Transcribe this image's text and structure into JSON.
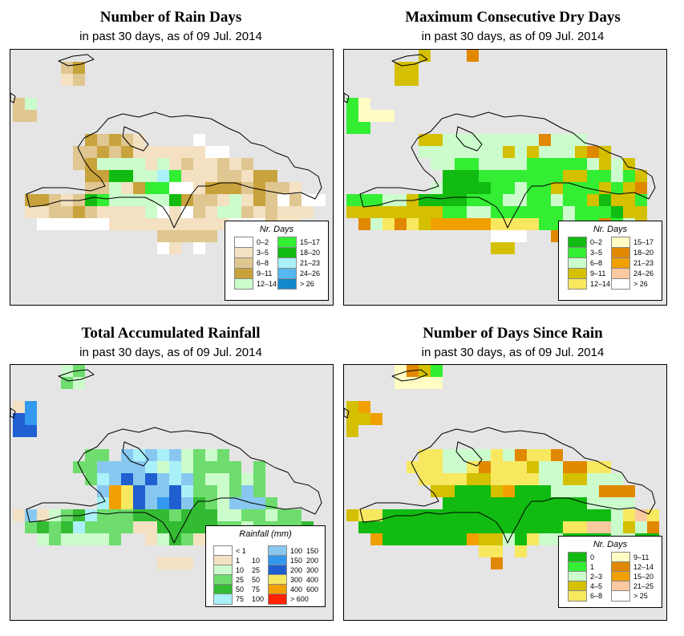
{
  "panels": [
    {
      "title": "Number of Rain Days",
      "subtitle": "in past 30 days, as of  09 Jul. 2014",
      "legend": {
        "title": "Nr. Days",
        "items": [
          {
            "label": "0–2",
            "color": "#ffffff"
          },
          {
            "label": "3–5",
            "color": "#f3e1c2"
          },
          {
            "label": "6–8",
            "color": "#e0c690"
          },
          {
            "label": "9–11",
            "color": "#c8a23c"
          },
          {
            "label": "12–14",
            "color": "#ccfccc"
          },
          {
            "label": "15–17",
            "color": "#33ee33"
          },
          {
            "label": "18–20",
            "color": "#11bb11"
          },
          {
            "label": "21–23",
            "color": "#aaf0f8"
          },
          {
            "label": "24–26",
            "color": "#55b8ee"
          },
          {
            "label": "> 26",
            "color": "#1188cc"
          }
        ]
      },
      "map": {
        "palette": {
          "a": "#ffffff",
          "b": "#f3e1c2",
          "c": "#e0c690",
          "d": "#c8a23c",
          "e": "#ccfccc",
          "f": "#33ee33",
          "g": "#11bb11",
          "h": "#aaf0f8"
        },
        "rows": [
          "...........................",
          "....cd.....................",
          "....bc.....................",
          "...........................",
          "ce.........................",
          "cc.........................",
          "...........................",
          "......dcdcb....a...........",
          ".....ccdcdbbbbbbaa.........",
          ".....cdeeeebebcbbcbc.......",
          "......ddggeehfbbbccbdd.....",
          "......ccebdffaabdddcdccb...",
          ".ddcbcgfeeeeegdccbebdcacaa.",
          ".bbccdcbbbbeabacbeecbcbbb..",
          "..aaaaaabbbbbbbbbbaaacbb...",
          "............ccccc..........",
          "............ab.a..........."
        ]
      }
    },
    {
      "title": "Maximum Consecutive Dry Days",
      "subtitle": "in past 30 days, as of  09 Jul. 2014",
      "legend": {
        "title": "Nr. Days",
        "items": [
          {
            "label": "0–2",
            "color": "#11bb11"
          },
          {
            "label": "3–5",
            "color": "#33ee33"
          },
          {
            "label": "6–8",
            "color": "#ccfccc"
          },
          {
            "label": "9–11",
            "color": "#d4c000"
          },
          {
            "label": "12–14",
            "color": "#f8e860"
          },
          {
            "label": "15–17",
            "color": "#fffcc4"
          },
          {
            "label": "18–20",
            "color": "#e08800"
          },
          {
            "label": "21–23",
            "color": "#f0a000"
          },
          {
            "label": "24–26",
            "color": "#fbc9a0"
          },
          {
            "label": "> 26",
            "color": "#ffffff"
          }
        ]
      },
      "map": {
        "palette": {
          "a": "#11bb11",
          "b": "#33ee33",
          "c": "#ccfccc",
          "d": "#d4c000",
          "e": "#f8e860",
          "f": "#fffcc4",
          "g": "#e08800",
          "h": "#f0a000",
          "i": "#fbc9a0",
          "j": "#ffffff"
        },
        "rows": [
          "......d...g................",
          "....dd.....................",
          "....dd.....................",
          "...........................",
          "bf.........................",
          "bfff.......................",
          "bb.........................",
          "......ddccccccccgccc.......",
          "......cccccccdcdcccdgd.....",
          ".......ccbbccccbbbbbcdcd...",
          "........aaabbbbbbbddbbcbd..",
          ".......caaaabbcbbdbbbdbdg..",
          "bbbccdaaaabbbccbbcbbdaddb..",
          "ddddddddbbccbbbbbbcbbbadd..",
          ".gcegedhhhhheeeebbcbbgbcd..",
          "............jjj..g.........",
          "............dd............."
        ]
      }
    },
    {
      "title": "Total Accumulated Rainfall",
      "subtitle": "in past 30 days, as of  09 Jul. 2014",
      "legend": {
        "title": "Rainfall (mm)",
        "items": [
          {
            "lo": "< 1",
            "hi": "",
            "color": "#ffffff"
          },
          {
            "lo": "1",
            "hi": "10",
            "color": "#f3e1c2"
          },
          {
            "lo": "10",
            "hi": "25",
            "color": "#ccfccc"
          },
          {
            "lo": "25",
            "hi": "50",
            "color": "#6edd6e"
          },
          {
            "lo": "50",
            "hi": "75",
            "color": "#33bb33"
          },
          {
            "lo": "75",
            "hi": "100",
            "color": "#aaf0f8"
          },
          {
            "lo": "100",
            "hi": "150",
            "color": "#88c8f0"
          },
          {
            "lo": "150",
            "hi": "200",
            "color": "#3399ee"
          },
          {
            "lo": "200",
            "hi": "300",
            "color": "#1f5fd0"
          },
          {
            "lo": "300",
            "hi": "400",
            "color": "#f8e860"
          },
          {
            "lo": "400",
            "hi": "600",
            "color": "#f0a000"
          },
          {
            "lo": "> 600",
            "hi": "",
            "color": "#ff2200"
          }
        ]
      },
      "map": {
        "palette": {
          "a": "#ffffff",
          "b": "#f3e1c2",
          "c": "#ccfccc",
          "d": "#6edd6e",
          "e": "#33bb33",
          "f": "#aaf0f8",
          "g": "#88c8f0",
          "h": "#3399ee",
          "i": "#1f5fd0",
          "j": "#f8e860",
          "k": "#f0a000"
        },
        "rows": [
          "....cd.....................",
          "....dc.....................",
          "...........................",
          "bh.........................",
          "ih.........................",
          "ii.........................",
          "...........................",
          "......dd.gfgfgcdcd.........",
          ".....ddggggfcfcdddd.d......",
          "......dfgigigfgdccdcd......",
          ".......gkjiggifddcdgd......",
          ".......fkjighigedcgggd.....",
          "bgbcdefdddeeedeeeccddcdd...",
          ".dedefddddbbeeeeeddcdddde..",
          "..cdccccd..bcedbbccdd......",
          "..........................",
          "............bbb............"
        ]
      }
    },
    {
      "title": "Number of Days Since Rain",
      "subtitle": "in past 30 days, as of  09 Jul. 2014",
      "legend": {
        "title": "Nr. Days",
        "items": [
          {
            "label": "0",
            "color": "#11bb11"
          },
          {
            "label": "1",
            "color": "#33ee33"
          },
          {
            "label": "2–3",
            "color": "#ccfccc"
          },
          {
            "label": "4–5",
            "color": "#d4c000"
          },
          {
            "label": "6–8",
            "color": "#f8e860"
          },
          {
            "label": "9–11",
            "color": "#fffcc4"
          },
          {
            "label": "12–14",
            "color": "#e08800"
          },
          {
            "label": "15–20",
            "color": "#f0a000"
          },
          {
            "label": "21–25",
            "color": "#fbc9a0"
          },
          {
            "label": "> 25",
            "color": "#ffffff"
          }
        ]
      },
      "map": {
        "palette": {
          "a": "#11bb11",
          "b": "#33ee33",
          "c": "#ccfccc",
          "d": "#d4c000",
          "e": "#f8e860",
          "f": "#fffcc4",
          "g": "#e08800",
          "h": "#f0a000",
          "i": "#fbc9a0",
          "j": "#ffffff"
        },
        "rows": [
          "....fgdb...................",
          "....ffff...................",
          "...........................",
          "dh.........................",
          "ddh........................",
          "d..........................",
          "...........................",
          "......eeccccecgeeg.........",
          ".....eeeccegeeedccggee.....",
          "......eeeeddeeeeccddccc....",
          ".......ddaaadhaaaccccggg...",
          "........aaaaaaaaaaaacccc...",
          "deeaaaaaaaaaaaaaaaaaaaceie.",
          ".aaaaaaaaaaaaaaaaaeeiicdcg.",
          "..haaaaaaahddcaeccaaaaccaa.",
          "...........ee.e.........a..",
          "............g.............."
        ]
      }
    }
  ]
}
